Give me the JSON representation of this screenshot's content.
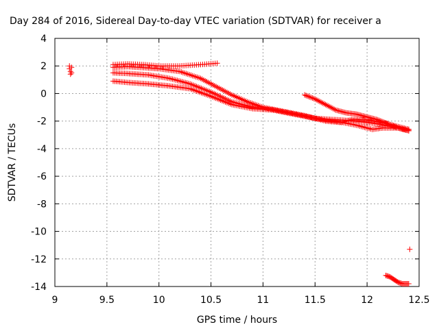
{
  "chart_data": {
    "type": "scatter",
    "title": "Day 284 of 2016, Sidereal Day-to-day VTEC variation (SDTVAR) for receiver a",
    "xlabel": "GPS time / hours",
    "ylabel": "SDTVAR / TECUs",
    "xlim": [
      9,
      12.5
    ],
    "ylim": [
      -14,
      4
    ],
    "xticks": [
      "9",
      "9.5",
      "10",
      "10.5",
      "11",
      "11.5",
      "12",
      "12.5"
    ],
    "yticks": [
      "4",
      "2",
      "0",
      "-2",
      "-4",
      "-6",
      "-8",
      "-10",
      "-12",
      "-14"
    ],
    "grid": true,
    "marker": "plus",
    "color": "#ff0000",
    "series": [
      {
        "x": [
          9.14,
          9.14,
          9.15,
          9.15,
          9.16,
          9.16
        ],
        "y": [
          2.0,
          1.8,
          1.6,
          1.4,
          1.9,
          1.5
        ]
      },
      {
        "polyline": [
          [
            9.56,
            2.1
          ],
          [
            9.7,
            2.15
          ],
          [
            9.85,
            2.1
          ],
          [
            10.0,
            2.0
          ],
          [
            10.2,
            2.0
          ],
          [
            10.4,
            2.1
          ],
          [
            10.56,
            2.2
          ]
        ],
        "step": 0.02
      },
      {
        "polyline": [
          [
            9.56,
            1.9
          ],
          [
            9.7,
            1.95
          ],
          [
            9.9,
            1.85
          ],
          [
            10.0,
            1.8
          ],
          [
            10.2,
            1.6
          ],
          [
            10.4,
            1.1
          ],
          [
            10.55,
            0.5
          ],
          [
            10.7,
            -0.1
          ],
          [
            10.85,
            -0.6
          ],
          [
            11.0,
            -1.0
          ],
          [
            11.2,
            -1.3
          ],
          [
            11.4,
            -1.6
          ],
          [
            11.6,
            -2.0
          ],
          [
            11.75,
            -2.1
          ],
          [
            11.85,
            -1.9
          ],
          [
            12.0,
            -1.9
          ],
          [
            12.15,
            -2.1
          ],
          [
            12.3,
            -2.4
          ],
          [
            12.4,
            -2.6
          ]
        ],
        "step": 0.015
      },
      {
        "polyline": [
          [
            9.56,
            1.5
          ],
          [
            9.7,
            1.45
          ],
          [
            9.9,
            1.35
          ],
          [
            10.1,
            1.1
          ],
          [
            10.3,
            0.7
          ],
          [
            10.5,
            0.1
          ],
          [
            10.7,
            -0.6
          ],
          [
            10.9,
            -1.0
          ],
          [
            11.1,
            -1.2
          ],
          [
            11.3,
            -1.5
          ],
          [
            11.5,
            -1.8
          ],
          [
            11.7,
            -2.0
          ],
          [
            11.9,
            -2.3
          ],
          [
            12.05,
            -2.6
          ],
          [
            12.15,
            -2.5
          ],
          [
            12.3,
            -2.5
          ],
          [
            12.4,
            -2.7
          ]
        ],
        "step": 0.015
      },
      {
        "polyline": [
          [
            9.56,
            0.9
          ],
          [
            9.7,
            0.8
          ],
          [
            9.9,
            0.7
          ],
          [
            10.1,
            0.55
          ],
          [
            10.3,
            0.35
          ],
          [
            10.5,
            -0.2
          ],
          [
            10.7,
            -0.8
          ],
          [
            10.9,
            -1.1
          ],
          [
            11.1,
            -1.2
          ],
          [
            11.3,
            -1.5
          ],
          [
            11.5,
            -1.8
          ],
          [
            11.7,
            -1.9
          ],
          [
            11.9,
            -2.0
          ],
          [
            12.1,
            -2.2
          ],
          [
            12.3,
            -2.5
          ],
          [
            12.4,
            -2.6
          ]
        ],
        "step": 0.015
      },
      {
        "polyline": [
          [
            11.4,
            -0.1
          ],
          [
            11.5,
            -0.4
          ],
          [
            11.6,
            -0.8
          ],
          [
            11.7,
            -1.2
          ],
          [
            11.8,
            -1.4
          ],
          [
            11.9,
            -1.5
          ],
          [
            12.0,
            -1.7
          ],
          [
            12.1,
            -1.9
          ],
          [
            12.2,
            -2.2
          ],
          [
            12.3,
            -2.5
          ],
          [
            12.4,
            -2.7
          ]
        ],
        "step": 0.012
      },
      {
        "polyline": [
          [
            12.18,
            -13.2
          ],
          [
            12.22,
            -13.3
          ],
          [
            12.26,
            -13.5
          ],
          [
            12.3,
            -13.7
          ],
          [
            12.34,
            -13.8
          ],
          [
            12.4,
            -13.8
          ]
        ],
        "step": 0.01
      },
      {
        "x": [
          12.41
        ],
        "y": [
          -11.3
        ]
      }
    ]
  }
}
